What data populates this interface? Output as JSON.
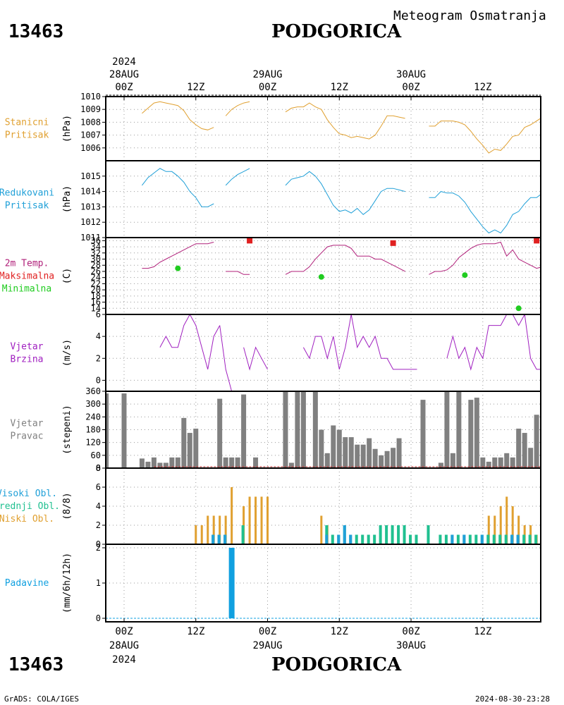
{
  "header": {
    "station_id": "13463",
    "city": "PODGORICA",
    "subtitle": "Meteogram Osmatranja"
  },
  "footer": {
    "station_id": "13463",
    "city": "PODGORICA",
    "credit": "GrADS: COLA/IGES",
    "timestamp": "2024-08-30-23:28"
  },
  "colors": {
    "pressure": "#e0a030",
    "reduced_pressure": "#20a0d8",
    "max_temp_label": "#e02020",
    "min_temp": "#20cc20",
    "temp_line": "#b0207a",
    "wind": "#a020c0",
    "bars_gray": "#808080",
    "high_cloud": "#20a0d8",
    "mid_cloud": "#20c090",
    "low_cloud": "#e0a030",
    "precip": "#10a0e0"
  },
  "chart_data": [
    {
      "type": "line",
      "name_lines": [
        "Stanicni",
        "Pritisak"
      ],
      "ylabel": "(hPa)",
      "ylim": [
        1005,
        1010
      ],
      "yticks": [
        1006,
        1007,
        1008,
        1009,
        1010
      ],
      "x_unit": "hours since 28AUG 00Z",
      "series": [
        {
          "color": "#e0a030",
          "x": [
            3,
            4,
            5,
            6,
            7,
            8,
            9,
            10,
            11,
            12,
            13,
            14,
            15
          ],
          "y": [
            1008.7,
            1009.1,
            1009.5,
            1009.6,
            1009.5,
            1009.4,
            1009.3,
            1008.9,
            1008.2,
            1007.8,
            1007.5,
            1007.4,
            1007.6
          ]
        },
        {
          "color": "#e0a030",
          "x": [
            17,
            18,
            19,
            20,
            21
          ],
          "y": [
            1008.5,
            1009.0,
            1009.3,
            1009.5,
            1009.6
          ]
        },
        {
          "color": "#e0a030",
          "x": [
            27,
            28,
            29,
            30,
            31,
            32,
            33,
            34,
            35,
            36,
            37,
            38,
            39,
            40,
            41,
            42,
            43,
            44,
            45,
            46,
            47
          ],
          "y": [
            1008.8,
            1009.1,
            1009.2,
            1009.2,
            1009.5,
            1009.2,
            1009.0,
            1008.2,
            1007.6,
            1007.1,
            1007.0,
            1006.8,
            1006.9,
            1006.8,
            1006.7,
            1007.0,
            1007.7,
            1008.5,
            1008.5,
            1008.4,
            1008.3
          ]
        },
        {
          "color": "#e0a030",
          "x": [
            51,
            52,
            53,
            54,
            55,
            56,
            57,
            58,
            59,
            60,
            61,
            62,
            63,
            64,
            65,
            66,
            67,
            68,
            69,
            70,
            71
          ],
          "y": [
            1007.7,
            1007.7,
            1008.1,
            1008.1,
            1008.1,
            1008.0,
            1007.8,
            1007.3,
            1006.7,
            1006.2,
            1005.6,
            1005.9,
            1005.8,
            1006.3,
            1006.9,
            1007.0,
            1007.6,
            1007.8,
            1008.1,
            1008.4,
            1008.5
          ]
        }
      ]
    },
    {
      "type": "line",
      "name_lines": [
        "Redukovani",
        "Pritisak"
      ],
      "ylabel": "(hPa)",
      "ylim": [
        1011,
        1016
      ],
      "yticks": [
        1011,
        1012,
        1013,
        1014,
        1015
      ],
      "x_unit": "hours since 28AUG 00Z",
      "series": [
        {
          "color": "#20a0d8",
          "x": [
            3,
            4,
            5,
            6,
            7,
            8,
            9,
            10,
            11,
            12,
            13,
            14,
            15
          ],
          "y": [
            1014.4,
            1014.9,
            1015.2,
            1015.5,
            1015.3,
            1015.3,
            1015.0,
            1014.6,
            1014.0,
            1013.6,
            1013.0,
            1013.0,
            1013.2
          ]
        },
        {
          "color": "#20a0d8",
          "x": [
            17,
            18,
            19,
            20,
            21
          ],
          "y": [
            1014.4,
            1014.8,
            1015.1,
            1015.3,
            1015.5
          ]
        },
        {
          "color": "#20a0d8",
          "x": [
            27,
            28,
            29,
            30,
            31,
            32,
            33,
            34,
            35,
            36,
            37,
            38,
            39,
            40,
            41,
            42,
            43,
            44,
            45,
            46,
            47
          ],
          "y": [
            1014.4,
            1014.8,
            1014.9,
            1015.0,
            1015.3,
            1015.0,
            1014.5,
            1013.8,
            1013.1,
            1012.7,
            1012.8,
            1012.6,
            1012.9,
            1012.5,
            1012.8,
            1013.4,
            1014.0,
            1014.2,
            1014.2,
            1014.1,
            1014.0
          ]
        },
        {
          "color": "#20a0d8",
          "x": [
            51,
            52,
            53,
            54,
            55,
            56,
            57,
            58,
            59,
            60,
            61,
            62,
            63,
            64,
            65,
            66,
            67,
            68,
            69,
            70,
            71
          ],
          "y": [
            1013.6,
            1013.6,
            1014.0,
            1013.9,
            1013.9,
            1013.7,
            1013.3,
            1012.7,
            1012.2,
            1011.7,
            1011.3,
            1011.5,
            1011.3,
            1011.8,
            1012.5,
            1012.7,
            1013.2,
            1013.6,
            1013.6,
            1013.9,
            1014.2
          ]
        }
      ]
    },
    {
      "type": "line",
      "name_lines": [
        "2m Temp.",
        "Maksimalna",
        "Minimalna"
      ],
      "name_colors": [
        "#b0207a",
        "#e02020",
        "#20cc20"
      ],
      "ylabel": "(C)",
      "ylim": [
        12,
        37
      ],
      "yticks": [
        14,
        16,
        18,
        20,
        22,
        24,
        26,
        28,
        30,
        32,
        34,
        36
      ],
      "x_unit": "hours since 28AUG 00Z",
      "series": [
        {
          "color": "#b0207a",
          "x": [
            3,
            4,
            5,
            6,
            7,
            8,
            9,
            10,
            11,
            12,
            13,
            14,
            15
          ],
          "y": [
            27,
            27,
            27.5,
            29,
            30,
            31,
            32,
            33,
            34,
            35,
            35,
            35,
            35.5
          ]
        },
        {
          "color": "#b0207a",
          "x": [
            17,
            18,
            19,
            20,
            21
          ],
          "y": [
            26,
            26,
            26,
            25,
            25
          ]
        },
        {
          "color": "#b0207a",
          "x": [
            27,
            28,
            29,
            30,
            31,
            32,
            33,
            34,
            35,
            36,
            37,
            38,
            39,
            40,
            41,
            42,
            43,
            44,
            45,
            46,
            47
          ],
          "y": [
            25,
            26,
            26,
            26,
            27.5,
            30,
            32,
            34,
            34.5,
            34.5,
            34.5,
            33.5,
            31,
            31,
            31,
            30,
            30,
            29,
            28,
            27,
            26
          ]
        },
        {
          "color": "#b0207a",
          "x": [
            51,
            52,
            53,
            54,
            55,
            56,
            57,
            58,
            59,
            60,
            61,
            62,
            63,
            64,
            65,
            66,
            67,
            68,
            69,
            70,
            71
          ],
          "y": [
            25,
            26,
            26,
            26.5,
            28,
            30.5,
            32,
            33.5,
            34.5,
            35,
            35,
            35,
            35.5,
            31,
            33,
            30,
            29,
            28,
            27,
            27.5,
            27.5
          ]
        }
      ],
      "maxima": {
        "color": "#e02020",
        "x": [
          21,
          45,
          69
        ],
        "y": [
          36,
          35.2,
          36
        ]
      },
      "minima": {
        "color": "#20cc20",
        "x": [
          9,
          33,
          57,
          66
        ],
        "y": [
          27,
          24.2,
          24.8,
          14
        ]
      }
    },
    {
      "type": "line",
      "name_lines": [
        "Vjetar",
        "Brzina"
      ],
      "ylabel": "(m/s)",
      "ylim": [
        -1,
        6
      ],
      "yticks": [
        0,
        2,
        4,
        6
      ],
      "x_unit": "hours since 28AUG 00Z",
      "series": [
        {
          "color": "#a020c0",
          "x": [
            6,
            7,
            8,
            9,
            10,
            11,
            12,
            13,
            14,
            15,
            16
          ],
          "y": [
            3,
            4,
            3,
            3,
            5,
            6,
            5,
            3,
            1,
            4,
            5
          ]
        },
        {
          "color": "#a020c0",
          "x": [
            16,
            17,
            18
          ],
          "y": [
            5,
            1,
            -1
          ]
        },
        {
          "color": "#a020c0",
          "x": [
            20,
            21,
            22,
            23,
            24
          ],
          "y": [
            3,
            1,
            3,
            2,
            1
          ]
        },
        {
          "color": "#a020c0",
          "x": [
            30,
            31,
            32,
            33,
            34,
            35,
            36,
            37,
            38,
            39,
            40,
            41,
            42,
            43,
            44,
            45,
            46,
            47,
            48,
            49
          ],
          "y": [
            3,
            2,
            4,
            4,
            2,
            4,
            1,
            3,
            6,
            3,
            4,
            3,
            4,
            2,
            2,
            1,
            1,
            1,
            1,
            1
          ]
        },
        {
          "color": "#a020c0",
          "x": [
            54,
            55,
            56,
            57,
            58,
            59,
            60,
            61,
            62,
            63,
            64,
            65,
            66,
            67,
            68,
            69,
            70,
            71,
            72
          ],
          "y": [
            2,
            4,
            2,
            3,
            1,
            3,
            2,
            5,
            5,
            5,
            6,
            6,
            5,
            6,
            2,
            1,
            1,
            4,
            3
          ]
        }
      ]
    },
    {
      "type": "bar",
      "name_lines": [
        "Vjetar",
        "Pravac"
      ],
      "ylabel": "(stepeni)",
      "ylim": [
        0,
        360
      ],
      "yticks": [
        0,
        60,
        120,
        180,
        240,
        300,
        360
      ],
      "x_unit": "hours since 28AUG 00Z",
      "color": "#808080",
      "x": [
        -3,
        -1,
        0,
        1,
        2,
        3,
        4,
        5,
        6,
        7,
        8,
        9,
        10,
        11,
        12,
        13,
        14,
        15,
        16,
        17,
        18,
        19,
        20,
        21,
        22,
        23,
        24,
        25,
        26,
        27,
        28,
        29,
        30,
        31,
        32,
        33,
        34,
        35,
        36,
        37,
        38,
        39,
        40,
        41,
        42,
        43,
        44,
        45,
        46,
        47,
        48,
        49,
        50,
        51,
        52,
        53,
        54,
        55,
        56,
        57,
        58,
        59,
        60,
        61,
        62,
        63,
        64,
        65,
        66,
        67,
        68,
        69,
        70,
        71
      ],
      "values": [
        350,
        0,
        350,
        0,
        0,
        45,
        30,
        50,
        25,
        25,
        50,
        50,
        235,
        165,
        185,
        0,
        0,
        0,
        325,
        50,
        50,
        50,
        345,
        0,
        50,
        0,
        0,
        0,
        0,
        360,
        25,
        360,
        360,
        0,
        360,
        180,
        70,
        200,
        180,
        145,
        145,
        110,
        110,
        140,
        90,
        60,
        80,
        95,
        140,
        0,
        0,
        0,
        320,
        0,
        0,
        25,
        360,
        70,
        360,
        0,
        320,
        330,
        50,
        30,
        50,
        50,
        70,
        50,
        185,
        165,
        95,
        250,
        360,
        360
      ]
    },
    {
      "type": "bar",
      "name_lines": [
        "Visoki Obl.",
        "Srednji Obl.",
        "Niski Obl."
      ],
      "name_colors": [
        "#20a0d8",
        "#20c090",
        "#e0a030"
      ],
      "ylabel": "(8/8)",
      "ylim": [
        0,
        8
      ],
      "yticks": [
        0,
        2,
        4,
        6,
        8
      ],
      "x_unit": "hours since 28AUG 00Z",
      "series": [
        {
          "color": "#e0a030",
          "x": [
            12,
            13,
            14,
            15,
            16,
            17,
            18,
            19,
            20,
            21,
            22,
            23,
            24,
            25,
            26,
            33,
            34,
            35,
            36,
            37,
            38,
            39,
            40,
            41,
            42,
            47,
            48,
            49,
            61,
            62,
            63,
            64,
            65,
            66,
            67,
            68,
            69,
            70,
            71
          ],
          "values": [
            2,
            2,
            3,
            3,
            3,
            3,
            6,
            0,
            4,
            5,
            5,
            5,
            5,
            0,
            0,
            3,
            2,
            0,
            0,
            0,
            0,
            0,
            0,
            0,
            0,
            0,
            0,
            0,
            3,
            3,
            4,
            5,
            4,
            3,
            2,
            2,
            1,
            2,
            1
          ]
        },
        {
          "color": "#20c090",
          "x": [
            15,
            16,
            17,
            20,
            34,
            35,
            36,
            37,
            38,
            39,
            40,
            41,
            42,
            43,
            44,
            45,
            46,
            47,
            48,
            49,
            51,
            53,
            54,
            55,
            56,
            57,
            58,
            59,
            60,
            61,
            62,
            63,
            64,
            65,
            66,
            67,
            68,
            69
          ],
          "values": [
            1,
            1,
            1,
            2,
            2,
            1,
            1,
            2,
            1,
            1,
            1,
            1,
            1,
            2,
            2,
            2,
            2,
            2,
            1,
            1,
            2,
            1,
            1,
            1,
            1,
            1,
            1,
            1,
            1,
            1,
            1,
            1,
            1,
            1,
            1,
            1,
            1,
            1
          ]
        },
        {
          "color": "#20a0d8",
          "x": [
            15,
            16,
            17,
            34,
            36,
            37,
            38,
            55,
            57,
            60,
            65,
            66
          ],
          "values": [
            1,
            1,
            1,
            1,
            1,
            2,
            1,
            1,
            1,
            1,
            1,
            1
          ]
        }
      ]
    },
    {
      "type": "bar",
      "name_lines": [
        "Padavine"
      ],
      "name_colors": [
        "#10a0e0"
      ],
      "ylabel": "(mm/6h/12h)",
      "ylim": [
        -0.1,
        2.1
      ],
      "yticks": [
        0,
        1,
        2
      ],
      "x_unit": "hours since 28AUG 00Z",
      "color": "#10a0e0",
      "x": [
        18
      ],
      "values": [
        2
      ]
    }
  ],
  "x_axis": {
    "top_year": "2024",
    "bottom_year": "2024",
    "day_labels": [
      "28AUG",
      "29AUG",
      "30AUG"
    ],
    "tick_labels": [
      "00Z",
      "12Z",
      "00Z",
      "12Z",
      "00Z",
      "12Z"
    ]
  }
}
